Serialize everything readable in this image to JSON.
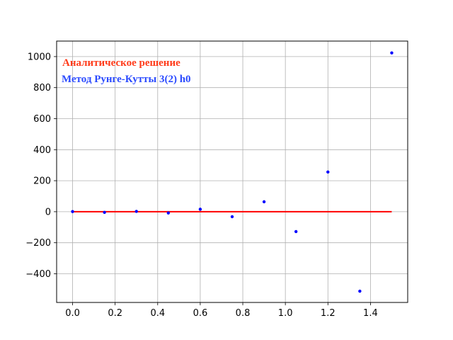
{
  "chart_data": {
    "type": "scatter",
    "title": "",
    "xlabel": "",
    "ylabel": "",
    "xlim": [
      -0.075,
      1.575
    ],
    "ylim": [
      -585,
      1100
    ],
    "grid": true,
    "xticks": [
      0.0,
      0.2,
      0.4,
      0.6,
      0.8,
      1.0,
      1.2,
      1.4
    ],
    "xtick_labels": [
      "0.0",
      "0.2",
      "0.4",
      "0.6",
      "0.8",
      "1.0",
      "1.2",
      "1.4"
    ],
    "yticks": [
      -400,
      -200,
      0,
      200,
      400,
      600,
      800,
      1000
    ],
    "ytick_labels": [
      "−400",
      "−200",
      "0",
      "200",
      "400",
      "600",
      "800",
      "1000"
    ],
    "legend_position": "top-left",
    "series": [
      {
        "name": "Аналитическое решение",
        "kind": "line",
        "color": "#ff0000",
        "x": [
          0.0,
          1.5
        ],
        "y": [
          0,
          0
        ]
      },
      {
        "name": "Метод Рунге-Кутты 3(2) h0",
        "kind": "scatter",
        "color": "#0000ff",
        "x": [
          0.0,
          0.15,
          0.3,
          0.45,
          0.6,
          0.75,
          0.9,
          1.05,
          1.2,
          1.35,
          1.5
        ],
        "y": [
          1,
          -4,
          2,
          -8,
          16,
          -32,
          64,
          -128,
          256,
          -512,
          1024
        ]
      }
    ]
  },
  "legend": {
    "analytic": "Аналитическое решение",
    "rk": "Метод Рунге-Кутты 3(2) h0",
    "analytic_color": "#ff3b1a",
    "rk_color": "#2b4bff"
  }
}
